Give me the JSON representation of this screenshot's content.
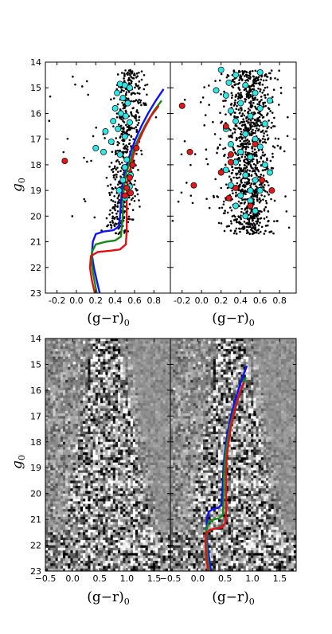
{
  "figure": {
    "y_label": "g",
    "y_label_sub": "0",
    "x_label_open": "(g",
    "x_label_dash": "−",
    "x_label_close": "r)",
    "x_label_sub": "0"
  },
  "colors": {
    "blue_isochrone": "#1010ff",
    "green_isochrone": "#148a14",
    "red_isochrone": "#e01010",
    "cyan_stars": "#2ee6e6",
    "red_stars": "#e01818",
    "field_stars": "#000000",
    "hess_background": "#909090"
  },
  "chart_data": [
    {
      "id": "top-left",
      "type": "scatter",
      "xlim": [
        -0.32,
        0.97
      ],
      "ylim": [
        23,
        14
      ],
      "xticks": [
        "-0.2",
        "0.0",
        "0.2",
        "0.4",
        "0.6",
        "0.8"
      ],
      "xtick_values": [
        -0.2,
        0.0,
        0.2,
        0.4,
        0.6,
        0.8
      ],
      "yticks": [
        "14",
        "15",
        "16",
        "17",
        "18",
        "19",
        "20",
        "21",
        "22",
        "23"
      ],
      "xlabel": "(g−r)₀",
      "ylabel": "g₀",
      "description": "Color-magnitude diagram with field stars (black), cyan and red highlighted stars, and three isochrones",
      "cyan_points": [
        [
          0.45,
          14.85
        ],
        [
          0.5,
          14.9
        ],
        [
          0.55,
          15.0
        ],
        [
          0.42,
          15.2
        ],
        [
          0.48,
          15.4
        ],
        [
          0.53,
          15.6
        ],
        [
          0.4,
          15.8
        ],
        [
          0.46,
          16.0
        ],
        [
          0.51,
          16.1
        ],
        [
          0.38,
          16.3
        ],
        [
          0.55,
          16.35
        ],
        [
          0.43,
          16.6
        ],
        [
          0.3,
          16.7
        ],
        [
          0.5,
          16.9
        ],
        [
          0.36,
          17.1
        ],
        [
          0.2,
          17.35
        ],
        [
          0.28,
          17.5
        ],
        [
          0.45,
          17.6
        ],
        [
          0.52,
          17.8
        ],
        [
          0.5,
          18.1
        ],
        [
          0.56,
          18.4
        ],
        [
          0.48,
          18.6
        ],
        [
          0.55,
          18.85
        ],
        [
          0.44,
          19.0
        ],
        [
          0.5,
          19.3
        ]
      ],
      "red_points": [
        [
          -0.12,
          17.85
        ],
        [
          0.62,
          17.35
        ],
        [
          0.58,
          18.0
        ],
        [
          0.55,
          18.5
        ],
        [
          0.52,
          18.9
        ],
        [
          0.56,
          19.1
        ],
        [
          0.5,
          19.2
        ]
      ],
      "isochrones": [
        {
          "color_key": "blue",
          "points": [
            [
              0.9,
              15.05
            ],
            [
              0.82,
              15.5
            ],
            [
              0.74,
              16.0
            ],
            [
              0.67,
              16.5
            ],
            [
              0.61,
              17.0
            ],
            [
              0.56,
              17.5
            ],
            [
              0.52,
              18.0
            ],
            [
              0.49,
              18.5
            ],
            [
              0.47,
              19.0
            ],
            [
              0.46,
              19.5
            ],
            [
              0.45,
              20.0
            ],
            [
              0.44,
              20.4
            ],
            [
              0.38,
              20.55
            ],
            [
              0.28,
              20.6
            ],
            [
              0.2,
              20.7
            ],
            [
              0.17,
              21.0
            ],
            [
              0.16,
              21.5
            ],
            [
              0.18,
              22.0
            ],
            [
              0.21,
              22.5
            ],
            [
              0.24,
              23.0
            ]
          ]
        },
        {
          "color_key": "green",
          "points": [
            [
              0.88,
              15.5
            ],
            [
              0.8,
              15.9
            ],
            [
              0.72,
              16.4
            ],
            [
              0.65,
              16.9
            ],
            [
              0.59,
              17.4
            ],
            [
              0.55,
              17.9
            ],
            [
              0.51,
              18.4
            ],
            [
              0.49,
              18.9
            ],
            [
              0.48,
              19.4
            ],
            [
              0.48,
              19.9
            ],
            [
              0.47,
              20.4
            ],
            [
              0.46,
              20.8
            ],
            [
              0.4,
              20.95
            ],
            [
              0.3,
              21.0
            ],
            [
              0.2,
              21.1
            ],
            [
              0.16,
              21.4
            ],
            [
              0.16,
              21.9
            ],
            [
              0.18,
              22.4
            ],
            [
              0.21,
              23.0
            ]
          ]
        },
        {
          "color_key": "red",
          "points": [
            [
              0.85,
              15.7
            ],
            [
              0.77,
              16.1
            ],
            [
              0.7,
              16.6
            ],
            [
              0.64,
              17.1
            ],
            [
              0.59,
              17.6
            ],
            [
              0.56,
              18.1
            ],
            [
              0.53,
              18.6
            ],
            [
              0.52,
              19.1
            ],
            [
              0.52,
              19.6
            ],
            [
              0.52,
              20.1
            ],
            [
              0.52,
              20.6
            ],
            [
              0.51,
              21.1
            ],
            [
              0.45,
              21.3
            ],
            [
              0.35,
              21.35
            ],
            [
              0.22,
              21.4
            ],
            [
              0.15,
              21.55
            ],
            [
              0.14,
              22.0
            ],
            [
              0.16,
              22.5
            ],
            [
              0.19,
              23.0
            ]
          ]
        }
      ]
    },
    {
      "id": "top-right",
      "type": "scatter",
      "xlim": [
        -0.32,
        0.97
      ],
      "ylim": [
        23,
        14
      ],
      "xticks": [
        "-0.2",
        "0.0",
        "0.2",
        "0.4",
        "0.6",
        "0.8"
      ],
      "xtick_values": [
        -0.2,
        0.0,
        0.2,
        0.4,
        0.6,
        0.8
      ],
      "xlabel": "(g−r)₀",
      "description": "Comparison field: wide band of black stars with many cyan and some red stars",
      "cyan_points": [
        [
          0.2,
          14.3
        ],
        [
          0.35,
          14.5
        ],
        [
          0.6,
          14.4
        ],
        [
          0.28,
          14.8
        ],
        [
          0.45,
          14.9
        ],
        [
          0.15,
          15.1
        ],
        [
          0.25,
          15.3
        ],
        [
          0.55,
          15.2
        ],
        [
          0.7,
          15.5
        ],
        [
          0.4,
          15.6
        ],
        [
          0.3,
          15.9
        ],
        [
          0.6,
          15.8
        ],
        [
          0.5,
          16.1
        ],
        [
          0.35,
          16.3
        ],
        [
          0.65,
          16.4
        ],
        [
          0.25,
          16.6
        ],
        [
          0.45,
          16.8
        ],
        [
          0.55,
          17.0
        ],
        [
          0.3,
          17.2
        ],
        [
          0.6,
          17.3
        ],
        [
          0.4,
          17.5
        ],
        [
          0.5,
          17.7
        ],
        [
          0.35,
          17.9
        ],
        [
          0.65,
          18.0
        ],
        [
          0.25,
          18.2
        ],
        [
          0.45,
          18.4
        ],
        [
          0.55,
          18.6
        ],
        [
          0.3,
          18.8
        ],
        [
          0.6,
          19.0
        ],
        [
          0.4,
          19.2
        ],
        [
          0.5,
          19.4
        ],
        [
          0.35,
          19.6
        ],
        [
          0.55,
          19.8
        ],
        [
          0.45,
          20.0
        ],
        [
          0.5,
          19.0
        ],
        [
          0.7,
          18.3
        ]
      ],
      "red_points": [
        [
          -0.2,
          15.7
        ],
        [
          -0.12,
          17.5
        ],
        [
          -0.08,
          18.8
        ],
        [
          0.25,
          16.5
        ],
        [
          0.3,
          17.6
        ],
        [
          0.55,
          17.2
        ],
        [
          0.2,
          18.3
        ],
        [
          0.62,
          18.6
        ],
        [
          0.35,
          18.9
        ],
        [
          0.72,
          19.0
        ],
        [
          0.28,
          19.3
        ],
        [
          0.5,
          19.6
        ],
        [
          0.3,
          17.9
        ]
      ]
    },
    {
      "id": "bottom-left",
      "type": "heatmap",
      "xlim": [
        -0.5,
        1.8
      ],
      "ylim": [
        23,
        14
      ],
      "xticks": [
        "−0.5",
        "0.0",
        "0.5",
        "1.0",
        "1.5"
      ],
      "xtick_values": [
        -0.5,
        0.0,
        0.5,
        1.0,
        1.5
      ],
      "yticks": [
        "14",
        "15",
        "16",
        "17",
        "18",
        "19",
        "20",
        "21",
        "22",
        "23"
      ],
      "xlabel": "(g−r)₀",
      "ylabel": "g₀",
      "description": "Residual Hess diagram (grayscale), high-contrast noise inside a wedge-shaped main-sequence region"
    },
    {
      "id": "bottom-right",
      "type": "heatmap",
      "xlim": [
        -0.5,
        1.8
      ],
      "ylim": [
        23,
        14
      ],
      "xticks": [
        "−0.5",
        "0.0",
        "0.5",
        "1.0",
        "1.5"
      ],
      "xtick_values": [
        -0.5,
        0.0,
        0.5,
        1.0,
        1.5
      ],
      "xlabel": "(g−r)₀",
      "description": "Same Hess diagram with the three isochrones overplotted",
      "isochrones_ref": "top-left"
    }
  ]
}
